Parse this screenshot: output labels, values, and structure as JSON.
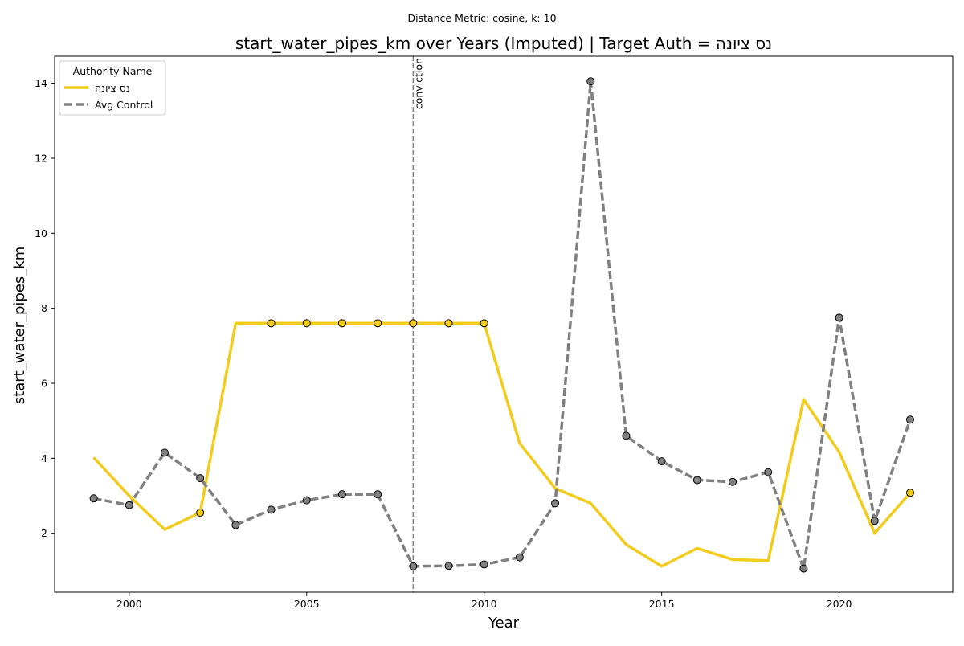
{
  "chart_data": {
    "type": "line",
    "suptitle": "Distance Metric: cosine, k: 10",
    "title": "start_water_pipes_km over Years (Imputed) | Target Auth = נס ציונה",
    "xlabel": "Year",
    "ylabel": "start_water_pipes_km",
    "xlim": [
      1997.9,
      2023.2
    ],
    "ylim": [
      0.43,
      14.72
    ],
    "x_ticks": [
      2000,
      2005,
      2010,
      2015,
      2020
    ],
    "y_ticks": [
      2,
      4,
      6,
      8,
      10,
      12,
      14
    ],
    "grid": false,
    "legend": {
      "title": "Authority Name",
      "position": "upper-left"
    },
    "annotation": {
      "x": 2008,
      "label": "conviction"
    },
    "series": [
      {
        "name": "נס ציונה",
        "color": "#f2cb1d",
        "style": "solid",
        "x": [
          1999,
          2000,
          2001,
          2002,
          2003,
          2004,
          2005,
          2006,
          2007,
          2008,
          2009,
          2010,
          2011,
          2012,
          2013,
          2014,
          2015,
          2016,
          2017,
          2018,
          2019,
          2020,
          2021,
          2022
        ],
        "values": [
          4.02,
          3.0,
          2.1,
          2.55,
          7.6,
          7.6,
          7.6,
          7.6,
          7.6,
          7.6,
          7.6,
          7.6,
          4.4,
          3.2,
          2.8,
          1.7,
          1.12,
          1.6,
          1.3,
          1.27,
          5.57,
          4.17,
          2.0,
          3.08
        ],
        "markers_at": [
          2002,
          2004,
          2005,
          2006,
          2007,
          2008,
          2009,
          2010,
          2022
        ]
      },
      {
        "name": "Avg Control",
        "color": "#808080",
        "style": "dashed",
        "x": [
          1999,
          2000,
          2001,
          2002,
          2003,
          2004,
          2005,
          2006,
          2007,
          2008,
          2009,
          2010,
          2011,
          2012,
          2013,
          2014,
          2015,
          2016,
          2017,
          2018,
          2019,
          2020,
          2021,
          2022
        ],
        "values": [
          2.93,
          2.75,
          4.15,
          3.47,
          2.22,
          2.63,
          2.88,
          3.04,
          3.04,
          1.12,
          1.13,
          1.17,
          1.36,
          2.8,
          14.05,
          4.6,
          3.92,
          3.42,
          3.37,
          3.63,
          1.06,
          7.75,
          2.33,
          5.03
        ],
        "markers_at": [
          1999,
          2000,
          2001,
          2002,
          2003,
          2004,
          2005,
          2006,
          2007,
          2008,
          2009,
          2010,
          2011,
          2012,
          2013,
          2014,
          2015,
          2016,
          2017,
          2018,
          2019,
          2020,
          2021,
          2022
        ]
      }
    ]
  }
}
